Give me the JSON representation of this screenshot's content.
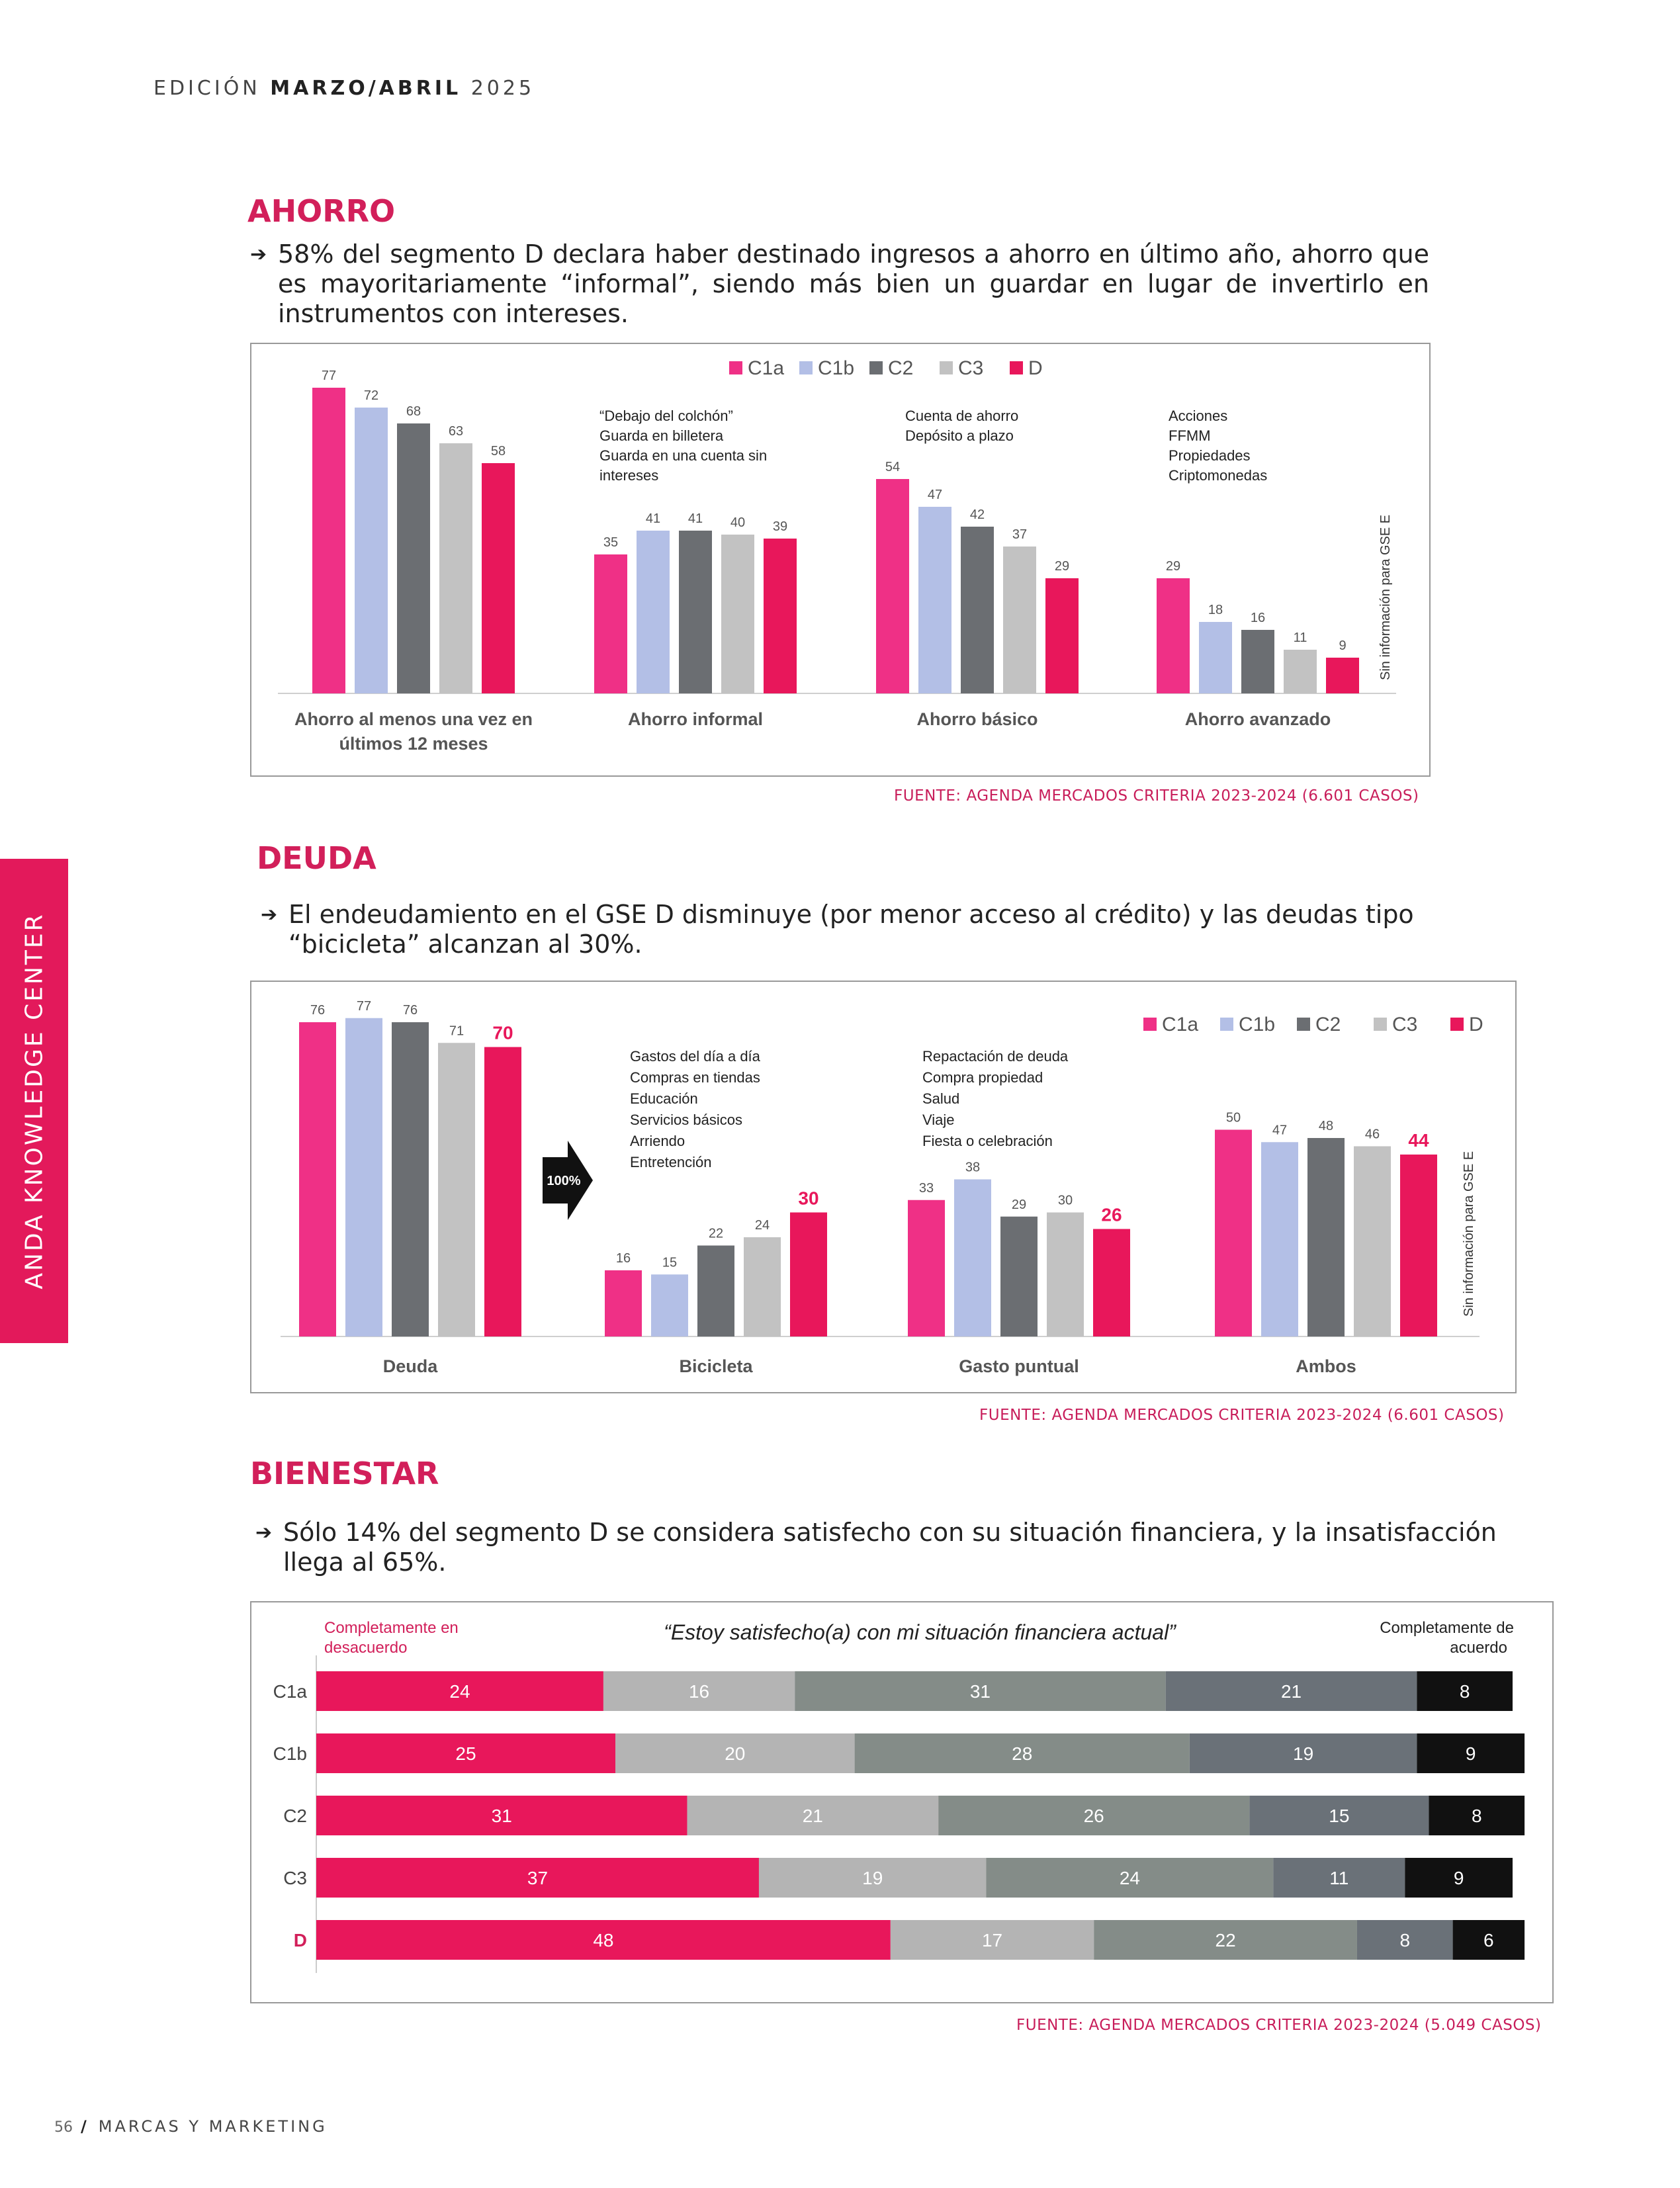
{
  "header": {
    "prefix": "EDICIÓN ",
    "bold": "MARZO/ABRIL",
    "suffix": " 2025"
  },
  "sidebar": {
    "label": "ANDA KNOWLEDGE CENTER"
  },
  "footer": {
    "page": "56",
    "slash": "/",
    "label": "MARCAS Y MARKETING"
  },
  "sections": {
    "ahorro": {
      "title": "AHORRO",
      "bullet": "58% del segmento D declara haber destinado ingresos a ahorro en último año, ahorro que es mayoritariamente “informal”, siendo más bien un guardar en lugar de invertirlo en instrumentos con intereses.",
      "source": "FUENTE: AGENDA MERCADOS CRITERIA 2023-2024 (6.601 CASOS)"
    },
    "deuda": {
      "title": "DEUDA",
      "bullet": "El endeudamiento en el GSE D disminuye (por menor acceso al crédito) y las deudas tipo “bicicleta” alcanzan al 30%.",
      "source": "FUENTE: AGENDA MERCADOS CRITERIA 2023-2024 (6.601 CASOS)"
    },
    "bienestar": {
      "title": "BIENESTAR",
      "bullet": "Sólo 14% del segmento D se considera satisfecho con su situación financiera, y la insatisfacción llega al 65%.",
      "source": "FUENTE: AGENDA MERCADOS CRITERIA 2023-2024 (5.049 CASOS)"
    }
  },
  "colors": {
    "C1a": "#ef3086",
    "C1b": "#b3bfe6",
    "C2": "#6b6e72",
    "C3": "#c2c2c2",
    "D": "#e8175b",
    "brand": "#d21f5a"
  },
  "chart_data": [
    {
      "type": "bar",
      "legend": [
        "C1a",
        "C1b",
        "C2",
        "C3",
        "D"
      ],
      "categories": [
        "Ahorro al menos una vez en últimos 12 meses",
        "Ahorro informal",
        "Ahorro básico",
        "Ahorro avanzado"
      ],
      "series": [
        {
          "name": "C1a",
          "values": [
            77,
            35,
            54,
            29
          ]
        },
        {
          "name": "C1b",
          "values": [
            72,
            41,
            47,
            18
          ]
        },
        {
          "name": "C2",
          "values": [
            68,
            41,
            42,
            16
          ]
        },
        {
          "name": "C3",
          "values": [
            63,
            40,
            37,
            11
          ]
        },
        {
          "name": "D",
          "values": [
            58,
            39,
            29,
            9
          ]
        }
      ],
      "annotations": [
        [
          "“Debajo del colchón”",
          "Guarda en billetera",
          "Guarda en una cuenta sin",
          "intereses"
        ],
        [
          "Cuenta de ahorro",
          "Depósito a plazo"
        ],
        [
          "Acciones",
          "FFMM",
          "Propiedades",
          "Criptomonedas"
        ]
      ],
      "side_note": "Sin información para GSE E"
    },
    {
      "type": "bar",
      "legend": [
        "C1a",
        "C1b",
        "C2",
        "C3",
        "D"
      ],
      "categories": [
        "Deuda",
        "Bicicleta",
        "Gasto puntual",
        "Ambos"
      ],
      "series": [
        {
          "name": "C1a",
          "values": [
            76,
            16,
            33,
            50
          ]
        },
        {
          "name": "C1b",
          "values": [
            77,
            15,
            38,
            47
          ]
        },
        {
          "name": "C2",
          "values": [
            76,
            22,
            29,
            48
          ]
        },
        {
          "name": "C3",
          "values": [
            71,
            24,
            30,
            46
          ]
        },
        {
          "name": "D",
          "values": [
            70,
            30,
            26,
            44
          ]
        }
      ],
      "annotations": [
        [
          "Gastos del día a día",
          "Compras en tiendas",
          "Educación",
          "Servicios básicos",
          "Arriendo",
          "Entretención"
        ],
        [
          "Repactación de deuda",
          "Compra propiedad",
          "Salud",
          "Viaje",
          "Fiesta o celebración"
        ]
      ],
      "arrow_label": "100%",
      "side_note": "Sin información para GSE E"
    },
    {
      "type": "bar",
      "orientation": "horizontal-stacked",
      "title": "“Estoy satisfecho(a) con mi situación financiera actual”",
      "left_label": "Completamente en desacuerdo",
      "right_label": "Completamente de acuerdo",
      "categories": [
        "C1a",
        "C1b",
        "C2",
        "C3",
        "D"
      ],
      "rows": [
        [
          24,
          16,
          31,
          21,
          8
        ],
        [
          25,
          20,
          28,
          19,
          9
        ],
        [
          31,
          21,
          26,
          15,
          8
        ],
        [
          37,
          19,
          24,
          11,
          9
        ],
        [
          48,
          17,
          22,
          8,
          6
        ]
      ],
      "segment_colors": [
        "#e8175b",
        "#b4b4b4",
        "#848c88",
        "#6a7178",
        "#111111"
      ]
    }
  ]
}
